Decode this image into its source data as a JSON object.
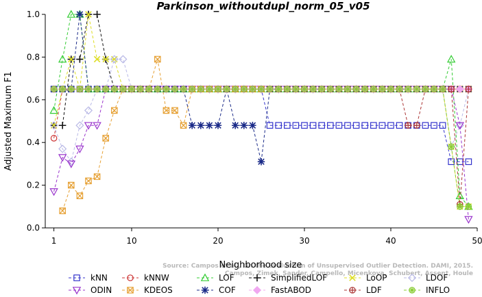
{
  "chart_data": {
    "type": "line",
    "title": "Parkinson_withoutdupl_norm_05_v05",
    "xlabel": "Neighborhood size",
    "ylabel": "Adjusted Maximum F1",
    "xlim": [
      0,
      50
    ],
    "ylim": [
      0,
      1
    ],
    "xticks": [
      "1",
      "10",
      "20",
      "30",
      "40",
      "50"
    ],
    "yticks": [
      "0.0",
      "0.2",
      "0.4",
      "0.6",
      "0.8",
      "1.0"
    ],
    "legend_position": "bottom",
    "watermark": [
      "Source: Campos et al., On the Evaluation of Unsupervised Outlier Detection. DAMI, 2015.",
      "Campos, Zimek, Sander, Campello, Micenkova, Schubert, Assent, Houle"
    ],
    "series": [
      {
        "name": "kNN",
        "color": "#3333cc",
        "marker": "square",
        "x": [
          1,
          2,
          3,
          4,
          5,
          6,
          7,
          8,
          9,
          10,
          11,
          12,
          13,
          14,
          15,
          16,
          17,
          18,
          19,
          20,
          21,
          22,
          23,
          24,
          25,
          26,
          27,
          28,
          29,
          30,
          31,
          32,
          33,
          34,
          35,
          36,
          37,
          38,
          39,
          40,
          41,
          42,
          43,
          44,
          45,
          46,
          47,
          48,
          49
        ],
        "y": [
          0.65,
          0.65,
          0.65,
          0.65,
          0.65,
          0.65,
          0.65,
          0.65,
          0.65,
          0.65,
          0.65,
          0.65,
          0.65,
          0.65,
          0.65,
          0.65,
          0.65,
          0.65,
          0.65,
          0.65,
          0.65,
          0.65,
          0.65,
          0.65,
          0.65,
          0.48,
          0.48,
          0.48,
          0.48,
          0.48,
          0.48,
          0.48,
          0.48,
          0.48,
          0.48,
          0.48,
          0.48,
          0.48,
          0.48,
          0.48,
          0.48,
          0.48,
          0.48,
          0.48,
          0.48,
          0.48,
          0.31,
          0.31,
          0.31
        ]
      },
      {
        "name": "kNNW",
        "color": "#cc3333",
        "marker": "circle",
        "x": [
          1,
          2,
          3,
          4,
          5,
          6,
          7,
          8,
          9,
          10,
          11,
          12,
          13,
          14,
          15,
          16,
          17,
          18,
          19,
          20,
          21,
          22,
          23,
          24,
          25,
          26,
          27,
          28,
          29,
          30,
          31,
          32,
          33,
          34,
          35,
          36,
          37,
          38,
          39,
          40,
          41,
          42,
          43,
          44,
          45,
          46,
          47,
          48,
          49
        ],
        "y": [
          0.42,
          0.65,
          0.65,
          0.65,
          0.65,
          0.65,
          0.65,
          0.65,
          0.65,
          0.65,
          0.65,
          0.65,
          0.65,
          0.65,
          0.65,
          0.65,
          0.65,
          0.65,
          0.65,
          0.65,
          0.65,
          0.65,
          0.65,
          0.65,
          0.65,
          0.65,
          0.65,
          0.65,
          0.65,
          0.65,
          0.65,
          0.65,
          0.65,
          0.65,
          0.65,
          0.65,
          0.65,
          0.65,
          0.65,
          0.65,
          0.65,
          0.65,
          0.65,
          0.65,
          0.65,
          0.65,
          0.65,
          0.65,
          0.65
        ]
      },
      {
        "name": "LOF",
        "color": "#33cc33",
        "marker": "triangle-up",
        "x": [
          1,
          2,
          3,
          4,
          5,
          6,
          7,
          8,
          9,
          10,
          11,
          12,
          13,
          14,
          15,
          16,
          17,
          18,
          19,
          20,
          21,
          22,
          23,
          24,
          25,
          26,
          27,
          28,
          29,
          30,
          31,
          32,
          33,
          34,
          35,
          36,
          37,
          38,
          39,
          40,
          41,
          42,
          43,
          44,
          45,
          46,
          47,
          48,
          49
        ],
        "y": [
          0.55,
          0.79,
          1.0,
          1.0,
          0.65,
          0.65,
          0.65,
          0.65,
          0.65,
          0.65,
          0.65,
          0.65,
          0.65,
          0.65,
          0.65,
          0.65,
          0.65,
          0.65,
          0.65,
          0.65,
          0.65,
          0.65,
          0.65,
          0.65,
          0.65,
          0.65,
          0.65,
          0.65,
          0.65,
          0.65,
          0.65,
          0.65,
          0.65,
          0.65,
          0.65,
          0.65,
          0.65,
          0.65,
          0.65,
          0.65,
          0.65,
          0.65,
          0.65,
          0.65,
          0.65,
          0.65,
          0.79,
          0.15,
          0.1
        ]
      },
      {
        "name": "SimplifiedLOF",
        "color": "#111111",
        "marker": "plus",
        "x": [
          1,
          2,
          3,
          4,
          5,
          6,
          7,
          8,
          9,
          10,
          11,
          12,
          13,
          14,
          15,
          16,
          17,
          18,
          19,
          20,
          21,
          22,
          23,
          24,
          25,
          26,
          27,
          28,
          29,
          30,
          31,
          32,
          33,
          34,
          35,
          36,
          37,
          38,
          39,
          40,
          41,
          42,
          43,
          44,
          45,
          46,
          47,
          48,
          49
        ],
        "y": [
          0.48,
          0.48,
          0.79,
          0.79,
          1.0,
          1.0,
          0.79,
          0.65,
          0.65,
          0.65,
          0.65,
          0.65,
          0.65,
          0.65,
          0.65,
          0.65,
          0.65,
          0.65,
          0.65,
          0.65,
          0.65,
          0.65,
          0.65,
          0.65,
          0.65,
          0.65,
          0.65,
          0.65,
          0.65,
          0.65,
          0.65,
          0.65,
          0.65,
          0.65,
          0.65,
          0.65,
          0.65,
          0.65,
          0.65,
          0.65,
          0.65,
          0.65,
          0.65,
          0.65,
          0.65,
          0.65,
          0.65,
          0.65,
          0.65
        ]
      },
      {
        "name": "LoOP",
        "color": "#dddd22",
        "marker": "cross",
        "x": [
          1,
          2,
          3,
          4,
          5,
          6,
          7,
          8,
          9,
          10,
          11,
          12,
          13,
          14,
          15,
          16,
          17,
          18,
          19,
          20,
          21,
          22,
          23,
          24,
          25,
          26,
          27,
          28,
          29,
          30,
          31,
          32,
          33,
          34,
          35,
          36,
          37,
          38,
          39,
          40,
          41,
          42,
          43,
          44,
          45,
          46,
          47,
          48,
          49
        ],
        "y": [
          0.48,
          0.65,
          0.79,
          0.65,
          1.0,
          0.79,
          0.79,
          0.79,
          0.65,
          0.65,
          0.65,
          0.65,
          0.65,
          0.65,
          0.65,
          0.65,
          0.65,
          0.65,
          0.65,
          0.65,
          0.65,
          0.65,
          0.65,
          0.65,
          0.65,
          0.65,
          0.65,
          0.65,
          0.65,
          0.65,
          0.65,
          0.65,
          0.65,
          0.65,
          0.65,
          0.65,
          0.65,
          0.65,
          0.65,
          0.65,
          0.65,
          0.65,
          0.65,
          0.65,
          0.65,
          0.65,
          0.38,
          0.1,
          0.1
        ]
      },
      {
        "name": "LDOF",
        "color": "#b8b8e6",
        "marker": "diamond",
        "x": [
          1,
          2,
          3,
          4,
          5,
          6,
          7,
          8,
          9,
          10,
          11,
          12,
          13,
          14,
          15,
          16,
          17,
          18,
          19,
          20,
          21,
          22,
          23,
          24,
          25,
          26,
          27,
          28,
          29,
          30,
          31,
          32,
          33,
          34,
          35,
          36,
          37,
          38,
          39,
          40,
          41,
          42,
          43,
          44,
          45,
          46,
          47,
          48,
          49
        ],
        "y": [
          0.48,
          0.37,
          0.31,
          0.48,
          0.55,
          0.65,
          0.65,
          0.79,
          0.79,
          0.65,
          0.65,
          0.65,
          0.65,
          0.65,
          0.65,
          0.65,
          0.65,
          0.65,
          0.65,
          0.65,
          0.65,
          0.65,
          0.65,
          0.65,
          0.65,
          0.65,
          0.65,
          0.65,
          0.65,
          0.65,
          0.65,
          0.65,
          0.65,
          0.65,
          0.65,
          0.65,
          0.65,
          0.65,
          0.65,
          0.65,
          0.65,
          0.65,
          0.65,
          0.65,
          0.65,
          0.65,
          0.38,
          0.48,
          0.65
        ]
      },
      {
        "name": "ODIN",
        "color": "#9933cc",
        "marker": "triangle-down",
        "x": [
          1,
          2,
          3,
          4,
          5,
          6,
          7,
          8,
          9,
          10,
          11,
          12,
          13,
          14,
          15,
          16,
          17,
          18,
          19,
          20,
          21,
          22,
          23,
          24,
          25,
          26,
          27,
          28,
          29,
          30,
          31,
          32,
          33,
          34,
          35,
          36,
          37,
          38,
          39,
          40,
          41,
          42,
          43,
          44,
          45,
          46,
          47,
          48,
          49
        ],
        "y": [
          0.17,
          0.33,
          0.3,
          0.37,
          0.48,
          0.48,
          0.65,
          0.65,
          0.65,
          0.65,
          0.65,
          0.65,
          0.65,
          0.65,
          0.65,
          0.65,
          0.65,
          0.65,
          0.65,
          0.65,
          0.65,
          0.65,
          0.65,
          0.65,
          0.65,
          0.65,
          0.65,
          0.65,
          0.65,
          0.65,
          0.65,
          0.65,
          0.65,
          0.65,
          0.65,
          0.65,
          0.65,
          0.65,
          0.65,
          0.65,
          0.65,
          0.65,
          0.65,
          0.65,
          0.65,
          0.65,
          0.65,
          0.48,
          0.04
        ]
      },
      {
        "name": "KDEOS",
        "color": "#e6a033",
        "marker": "square-x",
        "x": [
          2,
          3,
          4,
          5,
          6,
          7,
          8,
          9,
          10,
          11,
          12,
          13,
          14,
          15,
          16,
          17,
          18,
          19,
          20,
          21,
          22,
          23,
          24,
          25,
          26,
          27,
          28,
          29,
          30,
          31,
          32,
          33,
          34,
          35,
          36,
          37,
          38,
          39,
          40,
          41,
          42,
          43,
          44,
          45,
          46,
          47,
          48,
          49
        ],
        "y": [
          0.08,
          0.2,
          0.15,
          0.22,
          0.24,
          0.42,
          0.55,
          0.65,
          0.65,
          0.65,
          0.65,
          0.79,
          0.55,
          0.55,
          0.48,
          0.65,
          0.65,
          0.65,
          0.65,
          0.65,
          0.65,
          0.65,
          0.65,
          0.65,
          0.65,
          0.65,
          0.65,
          0.65,
          0.65,
          0.65,
          0.65,
          0.65,
          0.65,
          0.65,
          0.65,
          0.65,
          0.65,
          0.65,
          0.65,
          0.65,
          0.65,
          0.65,
          0.65,
          0.65,
          0.65,
          0.65,
          0.65,
          0.65
        ]
      },
      {
        "name": "COF",
        "color": "#1a2a88",
        "marker": "asterisk",
        "x": [
          1,
          2,
          3,
          4,
          5,
          6,
          7,
          8,
          9,
          10,
          11,
          12,
          13,
          14,
          15,
          16,
          17,
          18,
          19,
          20,
          21,
          22,
          23,
          24,
          25,
          26,
          27,
          28,
          29,
          30,
          31,
          32,
          33,
          34,
          35,
          36,
          37,
          38,
          39,
          40,
          41,
          42,
          43,
          44,
          45,
          46,
          47,
          48,
          49
        ],
        "y": [
          0.65,
          0.65,
          0.65,
          1.0,
          0.65,
          0.65,
          0.65,
          0.65,
          0.65,
          0.65,
          0.65,
          0.65,
          0.65,
          0.65,
          0.65,
          0.65,
          0.48,
          0.48,
          0.48,
          0.48,
          0.65,
          0.48,
          0.48,
          0.48,
          0.31,
          0.65,
          0.65,
          0.65,
          0.65,
          0.65,
          0.65,
          0.65,
          0.65,
          0.65,
          0.65,
          0.65,
          0.65,
          0.65,
          0.65,
          0.65,
          0.65,
          0.65,
          0.65,
          0.65,
          0.65,
          0.65,
          0.65,
          0.65,
          0.65
        ]
      },
      {
        "name": "FastABOD",
        "color": "#f0a8f0",
        "marker": "diamond-filled",
        "x": [
          1,
          2,
          3,
          4,
          5,
          6,
          7,
          8,
          9,
          10,
          11,
          12,
          13,
          14,
          15,
          16,
          17,
          18,
          19,
          20,
          21,
          22,
          23,
          24,
          25,
          26,
          27,
          28,
          29,
          30,
          31,
          32,
          33,
          34,
          35,
          36,
          37,
          38,
          39,
          40,
          41,
          42,
          43,
          44,
          45,
          46,
          47,
          48,
          49
        ],
        "y": [
          0.65,
          0.65,
          0.65,
          0.65,
          0.65,
          0.65,
          0.65,
          0.65,
          0.65,
          0.65,
          0.65,
          0.65,
          0.65,
          0.65,
          0.65,
          0.65,
          0.65,
          0.65,
          0.65,
          0.65,
          0.65,
          0.65,
          0.65,
          0.65,
          0.65,
          0.65,
          0.65,
          0.65,
          0.65,
          0.65,
          0.65,
          0.65,
          0.65,
          0.65,
          0.65,
          0.65,
          0.65,
          0.65,
          0.65,
          0.65,
          0.65,
          0.65,
          0.65,
          0.65,
          0.65,
          0.65,
          0.65,
          0.65,
          0.65
        ]
      },
      {
        "name": "LDF",
        "color": "#aa3333",
        "marker": "circle-plus",
        "x": [
          1,
          2,
          3,
          4,
          5,
          6,
          7,
          8,
          9,
          10,
          11,
          12,
          13,
          14,
          15,
          16,
          17,
          18,
          19,
          20,
          21,
          22,
          23,
          24,
          25,
          26,
          27,
          28,
          29,
          30,
          31,
          32,
          33,
          34,
          35,
          36,
          37,
          38,
          39,
          40,
          41,
          42,
          43,
          44,
          45,
          46,
          47,
          48,
          49
        ],
        "y": [
          0.65,
          0.65,
          0.65,
          0.65,
          0.65,
          0.65,
          0.65,
          0.65,
          0.65,
          0.65,
          0.65,
          0.65,
          0.65,
          0.65,
          0.65,
          0.65,
          0.65,
          0.65,
          0.65,
          0.65,
          0.65,
          0.65,
          0.65,
          0.65,
          0.65,
          0.65,
          0.65,
          0.65,
          0.65,
          0.65,
          0.65,
          0.65,
          0.65,
          0.65,
          0.65,
          0.65,
          0.65,
          0.65,
          0.65,
          0.65,
          0.65,
          0.48,
          0.48,
          0.65,
          0.65,
          0.65,
          0.65,
          0.11,
          0.65
        ]
      },
      {
        "name": "INFLO",
        "color": "#88cc33",
        "marker": "circle-star",
        "x": [
          1,
          2,
          3,
          4,
          5,
          6,
          7,
          8,
          9,
          10,
          11,
          12,
          13,
          14,
          15,
          16,
          17,
          18,
          19,
          20,
          21,
          22,
          23,
          24,
          25,
          26,
          27,
          28,
          29,
          30,
          31,
          32,
          33,
          34,
          35,
          36,
          37,
          38,
          39,
          40,
          41,
          42,
          43,
          44,
          45,
          46,
          47,
          48,
          49
        ],
        "y": [
          0.65,
          0.65,
          0.65,
          0.65,
          0.65,
          0.65,
          0.65,
          0.65,
          0.65,
          0.65,
          0.65,
          0.65,
          0.65,
          0.65,
          0.65,
          0.65,
          0.65,
          0.65,
          0.65,
          0.65,
          0.65,
          0.65,
          0.65,
          0.65,
          0.65,
          0.65,
          0.65,
          0.65,
          0.65,
          0.65,
          0.65,
          0.65,
          0.65,
          0.65,
          0.65,
          0.65,
          0.65,
          0.65,
          0.65,
          0.65,
          0.65,
          0.65,
          0.65,
          0.65,
          0.65,
          0.65,
          0.38,
          0.1,
          0.1
        ]
      }
    ]
  }
}
